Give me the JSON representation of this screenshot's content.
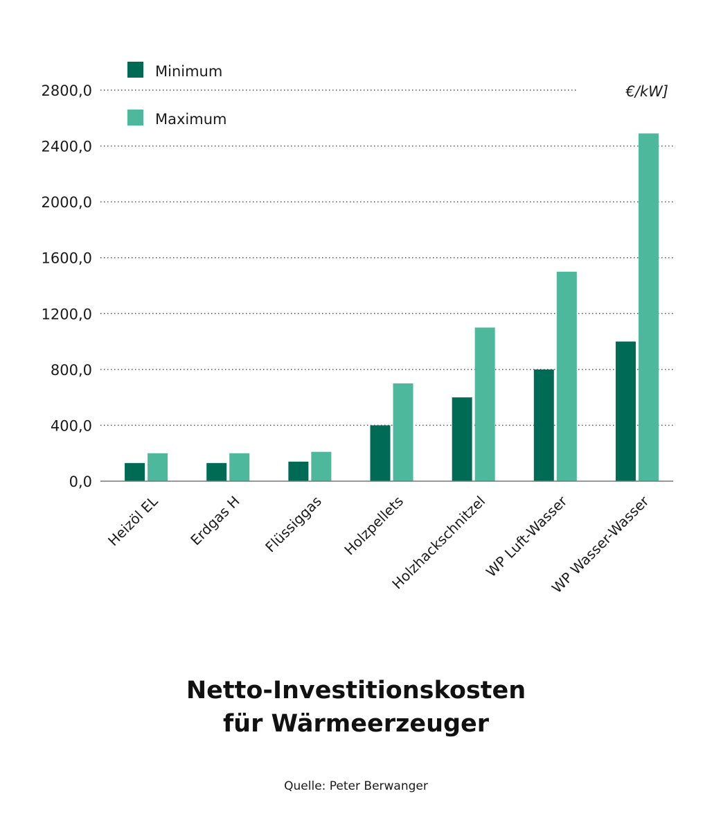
{
  "chart_data": {
    "type": "bar",
    "categories": [
      "Heizöl EL",
      "Erdgas H",
      "Flüssiggas",
      "Holzpellets",
      "Holzhackschnitzel",
      "WP Luft-Wasser",
      "WP Wasser-Wasser"
    ],
    "series": [
      {
        "name": "Minimum",
        "color": "#006b55",
        "values": [
          130,
          130,
          140,
          400,
          600,
          800,
          1000
        ]
      },
      {
        "name": "Maximum",
        "color": "#4db89b",
        "values": [
          200,
          200,
          210,
          700,
          1100,
          1500,
          2490
        ]
      }
    ],
    "yticks": [
      "0,0",
      "400,0",
      "800,0",
      "1200,0",
      "1600,0",
      "2000,0",
      "2400,0",
      "2800,0"
    ],
    "ylim": [
      0,
      2800
    ],
    "unit": "€/kW]",
    "grid": "dotted horizontal",
    "legend_position": "top-left"
  },
  "title_line1": "Netto-Investitionskosten",
  "title_line2": "für Wärmeerzeuger",
  "source": "Quelle: Peter Berwanger"
}
